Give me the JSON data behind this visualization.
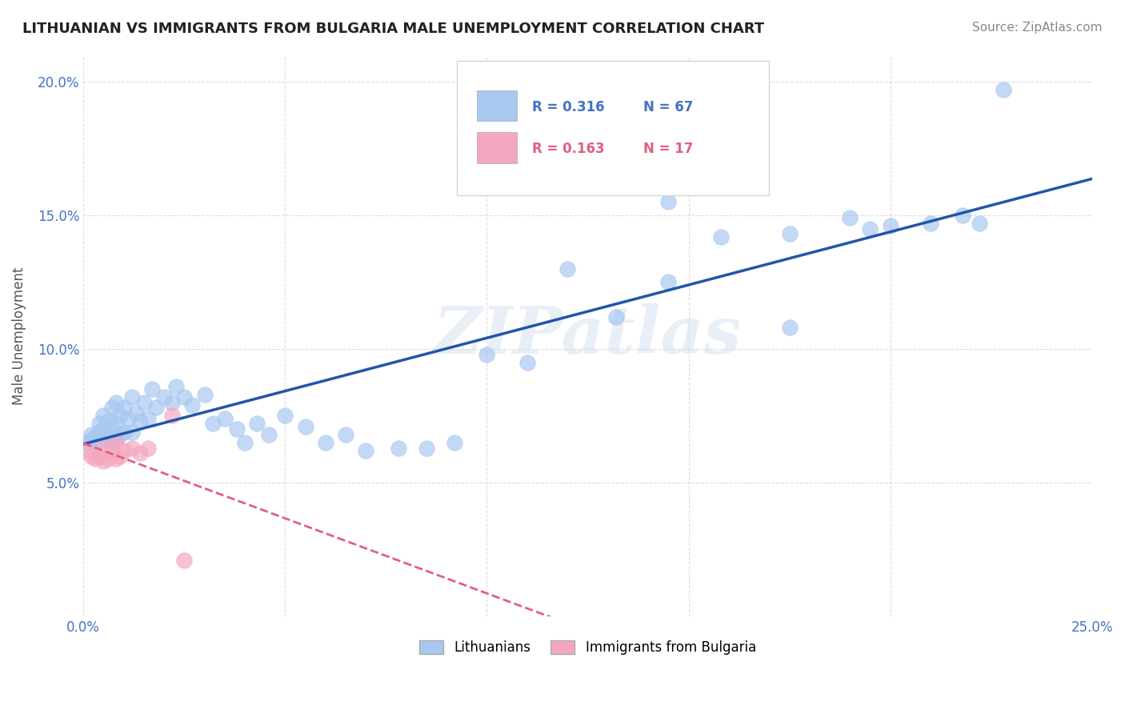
{
  "title": "LITHUANIAN VS IMMIGRANTS FROM BULGARIA MALE UNEMPLOYMENT CORRELATION CHART",
  "source": "Source: ZipAtlas.com",
  "ylabel": "Male Unemployment",
  "watermark": "ZIPatlas",
  "xlim": [
    0.0,
    0.25
  ],
  "ylim": [
    0.0,
    0.21
  ],
  "xtick_vals": [
    0.0,
    0.05,
    0.1,
    0.15,
    0.2,
    0.25
  ],
  "ytick_vals": [
    0.0,
    0.05,
    0.1,
    0.15,
    0.2
  ],
  "xticklabels": [
    "0.0%",
    "",
    "",
    "",
    "",
    "25.0%"
  ],
  "yticklabels": [
    "",
    "5.0%",
    "10.0%",
    "15.0%",
    "20.0%"
  ],
  "color_lith": "#a8c8f0",
  "color_bulg": "#f4a8c0",
  "line_color_lith": "#2255aa",
  "line_color_bulg": "#e06080",
  "background_color": "#ffffff",
  "grid_color": "#dddddd",
  "lith_x": [
    0.001,
    0.002,
    0.002,
    0.003,
    0.003,
    0.004,
    0.004,
    0.005,
    0.005,
    0.005,
    0.006,
    0.006,
    0.007,
    0.007,
    0.007,
    0.008,
    0.008,
    0.008,
    0.009,
    0.009,
    0.01,
    0.01,
    0.011,
    0.012,
    0.012,
    0.013,
    0.014,
    0.015,
    0.016,
    0.017,
    0.018,
    0.02,
    0.022,
    0.023,
    0.025,
    0.027,
    0.03,
    0.032,
    0.035,
    0.038,
    0.04,
    0.043,
    0.046,
    0.05,
    0.055,
    0.06,
    0.065,
    0.07,
    0.078,
    0.085,
    0.092,
    0.1,
    0.11,
    0.12,
    0.132,
    0.145,
    0.158,
    0.175,
    0.19,
    0.195,
    0.2,
    0.21,
    0.218,
    0.222,
    0.228,
    0.175,
    0.145
  ],
  "lith_y": [
    0.065,
    0.066,
    0.068,
    0.067,
    0.065,
    0.069,
    0.072,
    0.066,
    0.07,
    0.075,
    0.068,
    0.073,
    0.065,
    0.07,
    0.078,
    0.067,
    0.072,
    0.08,
    0.068,
    0.075,
    0.069,
    0.078,
    0.074,
    0.069,
    0.082,
    0.076,
    0.073,
    0.08,
    0.074,
    0.085,
    0.078,
    0.082,
    0.08,
    0.086,
    0.082,
    0.079,
    0.083,
    0.072,
    0.074,
    0.07,
    0.065,
    0.072,
    0.068,
    0.075,
    0.071,
    0.065,
    0.068,
    0.062,
    0.063,
    0.063,
    0.065,
    0.098,
    0.095,
    0.13,
    0.112,
    0.125,
    0.142,
    0.143,
    0.149,
    0.145,
    0.146,
    0.147,
    0.15,
    0.147,
    0.197,
    0.108,
    0.155
  ],
  "bulg_x": [
    0.001,
    0.002,
    0.003,
    0.004,
    0.005,
    0.005,
    0.006,
    0.007,
    0.008,
    0.008,
    0.009,
    0.01,
    0.012,
    0.014,
    0.016,
    0.022,
    0.025
  ],
  "bulg_y": [
    0.062,
    0.06,
    0.059,
    0.06,
    0.058,
    0.063,
    0.059,
    0.062,
    0.059,
    0.065,
    0.06,
    0.062,
    0.063,
    0.061,
    0.063,
    0.075,
    0.021
  ]
}
